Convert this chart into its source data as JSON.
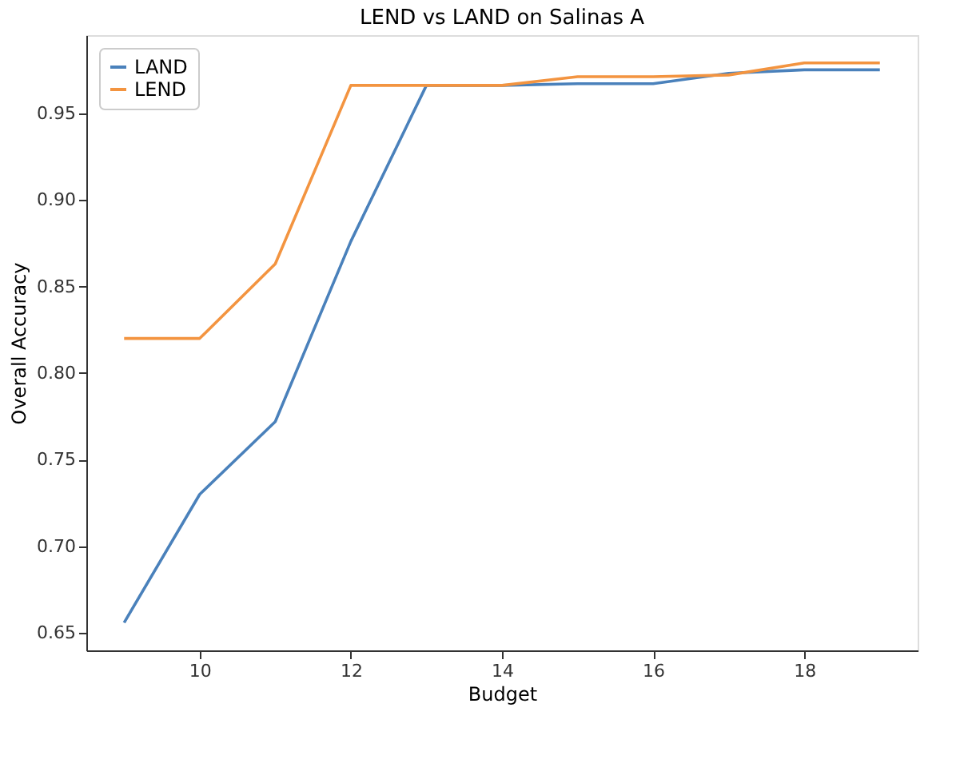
{
  "chart_data": {
    "type": "line",
    "title": "LEND vs LAND on Salinas A",
    "xlabel": "Budget",
    "ylabel": "Overall Accuracy",
    "x": [
      9,
      10,
      11,
      12,
      13,
      14,
      15,
      16,
      17,
      18,
      19
    ],
    "series": [
      {
        "name": "LAND",
        "color": "#4a81bb",
        "values": [
          0.656,
          0.73,
          0.772,
          0.876,
          0.966,
          0.966,
          0.967,
          0.967,
          0.973,
          0.975,
          0.975
        ]
      },
      {
        "name": "LEND",
        "color": "#f39440",
        "values": [
          0.82,
          0.82,
          0.863,
          0.966,
          0.966,
          0.966,
          0.971,
          0.971,
          0.972,
          0.979,
          0.979
        ]
      }
    ],
    "xlim": [
      8.5,
      19.5
    ],
    "xticks": [
      10,
      12,
      14,
      16,
      18
    ],
    "ylim": [
      0.64,
      0.995
    ],
    "yticks": [
      0.65,
      {
        "value": 0.7,
        "label": "0.70"
      },
      0.75,
      {
        "value": 0.8,
        "label": "0.80"
      },
      0.85,
      {
        "value": 0.9,
        "label": "0.90"
      },
      0.95
    ],
    "grid": false,
    "legend": "top left",
    "marker": "none",
    "line_style": "solid"
  }
}
